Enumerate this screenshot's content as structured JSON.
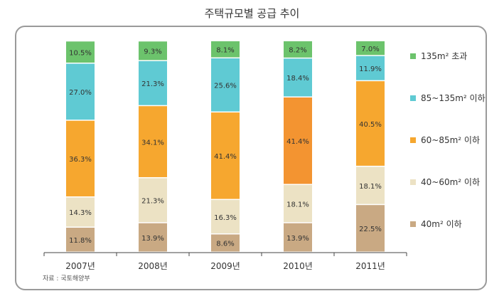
{
  "chart_data": {
    "type": "bar",
    "stacked": true,
    "percent": true,
    "title": "주택규모별 공급 추이",
    "categories": [
      "2007년",
      "2008년",
      "2009년",
      "2010년",
      "2011년"
    ],
    "series": [
      {
        "name": "40m² 이하",
        "color": "#c9a983",
        "values": [
          11.8,
          13.9,
          8.6,
          13.9,
          22.5
        ],
        "labels": [
          "11.8%",
          "13.9%",
          "8.6%",
          "13.9%",
          "22.5%"
        ]
      },
      {
        "name": "40~60m² 이하",
        "color": "#ece2c4",
        "values": [
          14.3,
          21.3,
          16.3,
          18.1,
          18.1
        ],
        "labels": [
          "14.3%",
          "21.3%",
          "16.3%",
          "18.1%",
          "18.1%"
        ]
      },
      {
        "name": "60~85m² 이하",
        "color": "#f6a72f",
        "values": [
          36.3,
          34.1,
          41.4,
          41.4,
          40.5
        ],
        "labels": [
          "36.3%",
          "34.1%",
          "41.4%",
          "41.4%",
          "40.5%"
        ]
      },
      {
        "name": "85~135m² 이하",
        "color": "#5fcad3",
        "values": [
          27.0,
          21.3,
          25.6,
          18.4,
          11.9
        ],
        "labels": [
          "27.0%",
          "21.3%",
          "25.6%",
          "18.4%",
          "11.9%"
        ]
      },
      {
        "name": "135m² 초과",
        "color": "#6cc36c",
        "values": [
          10.5,
          9.3,
          8.1,
          8.2,
          7.0
        ],
        "labels": [
          "10.5%",
          "9.3%",
          "8.1%",
          "8.2%",
          "7.0%"
        ]
      }
    ],
    "highlight": {
      "category_index": 3,
      "series_index": 2,
      "color": "#f39431"
    },
    "ylim": [
      0,
      100
    ],
    "xlabel": "",
    "ylabel": "",
    "grid": false,
    "legend_position": "right",
    "source": "자료 : 국토해양부"
  }
}
